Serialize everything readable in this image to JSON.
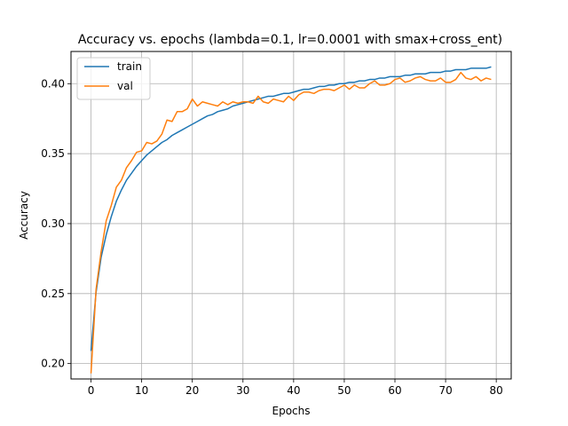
{
  "chart_data": {
    "type": "line",
    "title": "Accuracy vs. epochs (lambda=0.1, lr=0.0001 with smax+cross_ent)",
    "xlabel": "Epochs",
    "ylabel": "Accuracy",
    "xlim": [
      -3.95,
      82.95
    ],
    "ylim": [
      0.189,
      0.423
    ],
    "xticks": [
      0,
      10,
      20,
      30,
      40,
      50,
      60,
      70,
      80
    ],
    "yticks": [
      0.2,
      0.25,
      0.3,
      0.35,
      0.4
    ],
    "xtick_labels": [
      "0",
      "10",
      "20",
      "30",
      "40",
      "50",
      "60",
      "70",
      "80"
    ],
    "ytick_labels": [
      "0.20",
      "0.25",
      "0.30",
      "0.35",
      "0.40"
    ],
    "grid": true,
    "legend": "upper left",
    "series": [
      {
        "name": "train",
        "color": "#1f77b4",
        "values": [
          0.209,
          0.251,
          0.276,
          0.292,
          0.305,
          0.316,
          0.324,
          0.331,
          0.336,
          0.341,
          0.345,
          0.349,
          0.352,
          0.355,
          0.358,
          0.36,
          0.363,
          0.365,
          0.367,
          0.369,
          0.371,
          0.373,
          0.375,
          0.377,
          0.378,
          0.38,
          0.381,
          0.382,
          0.384,
          0.385,
          0.386,
          0.387,
          0.388,
          0.389,
          0.39,
          0.391,
          0.391,
          0.392,
          0.393,
          0.393,
          0.394,
          0.395,
          0.396,
          0.396,
          0.397,
          0.398,
          0.398,
          0.399,
          0.399,
          0.4,
          0.4,
          0.401,
          0.401,
          0.402,
          0.402,
          0.403,
          0.403,
          0.404,
          0.404,
          0.405,
          0.405,
          0.405,
          0.406,
          0.406,
          0.407,
          0.407,
          0.407,
          0.408,
          0.408,
          0.408,
          0.409,
          0.409,
          0.41,
          0.41,
          0.41,
          0.411,
          0.411,
          0.411,
          0.411,
          0.412
        ]
      },
      {
        "name": "val",
        "color": "#ff7f0e",
        "values": [
          0.193,
          0.253,
          0.28,
          0.302,
          0.313,
          0.326,
          0.331,
          0.34,
          0.345,
          0.351,
          0.352,
          0.358,
          0.357,
          0.359,
          0.364,
          0.374,
          0.373,
          0.38,
          0.38,
          0.382,
          0.389,
          0.384,
          0.387,
          0.386,
          0.385,
          0.384,
          0.387,
          0.385,
          0.387,
          0.386,
          0.387,
          0.387,
          0.386,
          0.391,
          0.387,
          0.386,
          0.389,
          0.388,
          0.387,
          0.391,
          0.388,
          0.392,
          0.394,
          0.394,
          0.393,
          0.395,
          0.396,
          0.396,
          0.395,
          0.397,
          0.399,
          0.396,
          0.399,
          0.397,
          0.397,
          0.4,
          0.402,
          0.399,
          0.399,
          0.4,
          0.403,
          0.404,
          0.401,
          0.402,
          0.404,
          0.405,
          0.403,
          0.402,
          0.402,
          0.404,
          0.401,
          0.401,
          0.403,
          0.408,
          0.404,
          0.403,
          0.405,
          0.402,
          0.404,
          0.403
        ]
      }
    ]
  }
}
